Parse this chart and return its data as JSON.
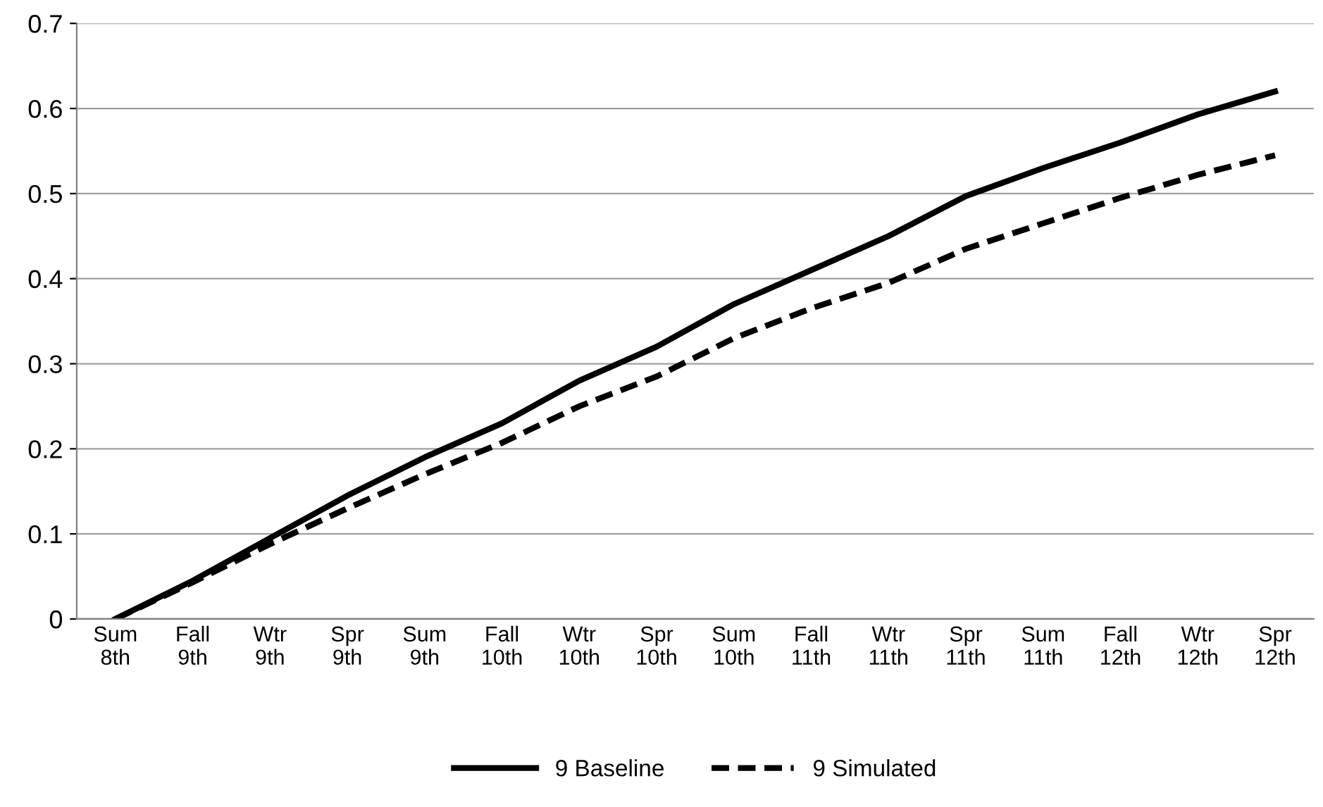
{
  "chart_data": {
    "type": "line",
    "categories": [
      "Sum\n8th",
      "Fall\n9th",
      "Wtr\n9th",
      "Spr\n9th",
      "Sum\n9th",
      "Fall\n10th",
      "Wtr\n10th",
      "Spr\n10th",
      "Sum\n10th",
      "Fall\n11th",
      "Wtr\n11th",
      "Spr\n11th",
      "Sum\n11th",
      "Fall\n12th",
      "Wtr\n12th",
      "Spr\n12th"
    ],
    "series": [
      {
        "name": "9 Baseline",
        "color": "#000000",
        "line_style": "solid",
        "values": [
          0,
          0.045,
          0.095,
          0.145,
          0.19,
          0.23,
          0.28,
          0.32,
          0.37,
          0.41,
          0.45,
          0.497,
          0.53,
          0.56,
          0.593,
          0.62
        ]
      },
      {
        "name": "9 Simulated",
        "color": "#000000",
        "line_style": "dashed",
        "values": [
          0,
          0.043,
          0.088,
          0.13,
          0.17,
          0.207,
          0.25,
          0.285,
          0.33,
          0.365,
          0.395,
          0.435,
          0.465,
          0.495,
          0.522,
          0.545
        ]
      }
    ],
    "ylim": [
      0,
      0.7
    ],
    "yticks": [
      0,
      0.1,
      0.2,
      0.3,
      0.4,
      0.5,
      0.6,
      0.7
    ],
    "grid": "y",
    "legend": "bottom",
    "marker": "none"
  }
}
